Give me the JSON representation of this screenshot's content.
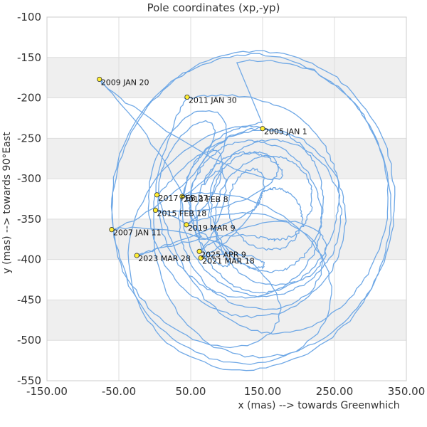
{
  "chart_data": {
    "type": "line",
    "title": "Pole coordinates (xp,-yp)",
    "xlabel": "x (mas) --> towards Greenwhich",
    "ylabel": "y (mas) --> towards 90°East",
    "xlim": [
      -150,
      350
    ],
    "ylim": [
      -550,
      -100
    ],
    "xticks": [
      "-150.00",
      "-50.00",
      "50.00",
      "150.00",
      "250.00",
      "350.00"
    ],
    "yticks": [
      "-100",
      "-150",
      "-200",
      "-250",
      "-300",
      "-350",
      "-400",
      "-450",
      "-500",
      "-550"
    ],
    "grid": true,
    "colors": {
      "line": "#6fa8e6",
      "marker": "#ffee33",
      "band": "#efefef",
      "grid": "#dddddd"
    },
    "annotations": [
      {
        "label": "2005 JAN 1",
        "x": 150,
        "y": -238
      },
      {
        "label": "2007 JAN 11",
        "x": -60,
        "y": -363
      },
      {
        "label": "2009 JAN 20",
        "x": -77,
        "y": -177
      },
      {
        "label": "2011 JAN 30",
        "x": 45,
        "y": -199
      },
      {
        "label": "2013 FEB 8",
        "x": 38,
        "y": -322
      },
      {
        "label": "2015 FEB 18",
        "x": 1,
        "y": -339
      },
      {
        "label": "2017 FEB 27",
        "x": 3,
        "y": -320
      },
      {
        "label": "2019 MAR 9",
        "x": 44,
        "y": -357
      },
      {
        "label": "2021 MAR 18",
        "x": 64,
        "y": -398
      },
      {
        "label": "2023 MAR 28",
        "x": -25,
        "y": -395
      },
      {
        "label": "2025 APR 9",
        "x": 62,
        "y": -390
      }
    ]
  }
}
